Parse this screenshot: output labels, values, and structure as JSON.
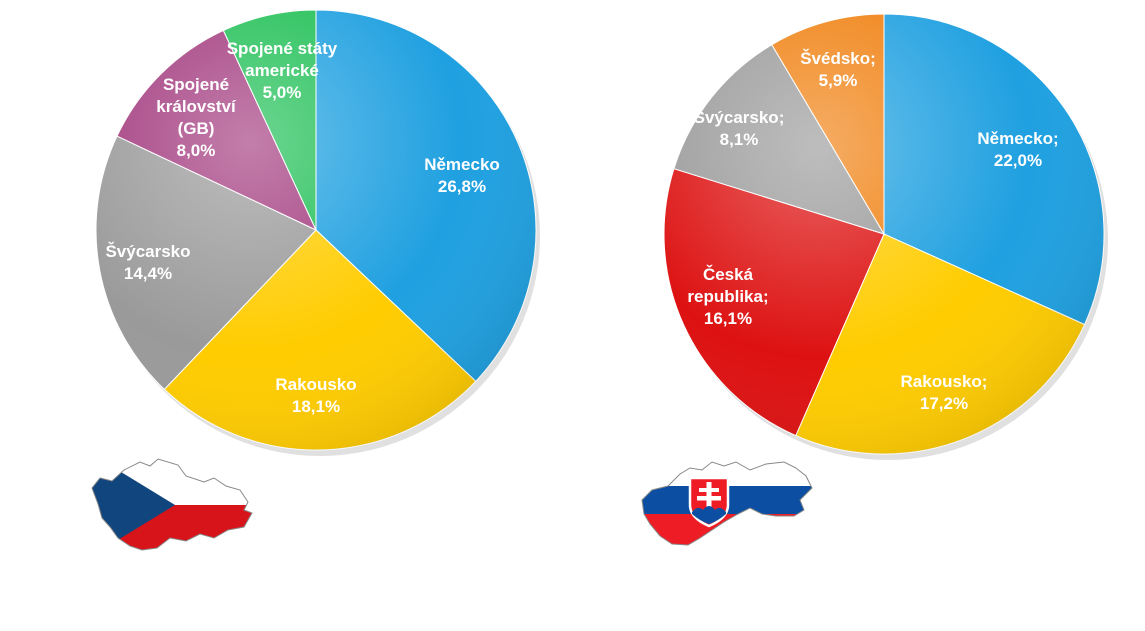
{
  "chart_data": [
    {
      "type": "pie",
      "title": "",
      "slices": [
        {
          "category": "Německo",
          "value": 26.8,
          "label": "26,8%",
          "color": "#1fa0e0"
        },
        {
          "category": "Rakousko",
          "value": 18.1,
          "label": "18,1%",
          "color": "#ffcc00"
        },
        {
          "category": "Švýcarsko",
          "value": 14.4,
          "label": "14,4%",
          "color": "#9a9a9a"
        },
        {
          "category": "Spojené království (GB)",
          "value": 8.0,
          "label": "8,0%",
          "color": "#a23a7e"
        },
        {
          "category": "Spojené státy americké",
          "value": 5.0,
          "label": "5,0%",
          "color": "#1fbf55"
        }
      ],
      "legend": "none"
    },
    {
      "type": "pie",
      "title": "",
      "slices": [
        {
          "category": "Německo",
          "value": 22.0,
          "label": "22,0%",
          "color": "#1fa0e0"
        },
        {
          "category": "Rakousko",
          "value": 17.2,
          "label": "17,2%",
          "color": "#ffcc00"
        },
        {
          "category": "Česká republika",
          "value": 16.1,
          "label": "16,1%",
          "color": "#dd1111"
        },
        {
          "category": "Švýcarsko",
          "value": 8.1,
          "label": "8,1%",
          "color": "#9a9a9a"
        },
        {
          "category": "Švédsko",
          "value": 5.9,
          "label": "5,9%",
          "color": "#f08010"
        }
      ],
      "legend": "none"
    }
  ],
  "pie_labels": {
    "left": [
      [
        "Německo",
        "26,8%"
      ],
      [
        "Rakousko",
        "18,1%"
      ],
      [
        "Švýcarsko",
        "14,4%"
      ],
      [
        "Spojené",
        "království",
        "(GB)",
        "8,0%"
      ],
      [
        "Spojené státy",
        "americké",
        "5,0%"
      ]
    ],
    "right": [
      [
        "Německo;",
        "22,0%"
      ],
      [
        "Rakousko;",
        "17,2%"
      ],
      [
        "Česká",
        "republika;",
        "16,1%"
      ],
      [
        "Švýcarsko;",
        "8,1%"
      ],
      [
        "Švédsko;",
        "5,9%"
      ]
    ]
  },
  "flags": {
    "left": {
      "icon": "czech-flag-map-icon",
      "colors": [
        "#ffffff",
        "#d7141a",
        "#11457e"
      ]
    },
    "right": {
      "icon": "slovak-flag-map-icon",
      "colors": [
        "#ffffff",
        "#0b4ea2",
        "#ee1c25"
      ]
    }
  }
}
